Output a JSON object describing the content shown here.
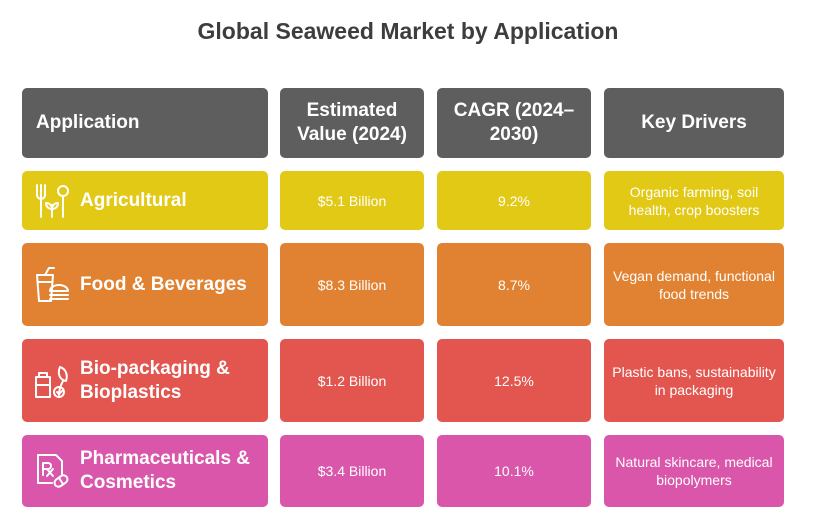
{
  "title": "Global Seaweed Market by Application",
  "headers": {
    "application": "Application",
    "value": "Estimated Value (2024)",
    "cagr": "CAGR (2024–2030)",
    "drivers": "Key Drivers"
  },
  "colors": {
    "header": "#5e5e5e",
    "agricultural": "#e2c916",
    "food": "#e08232",
    "bio": "#e2564f",
    "pharma": "#d956aa"
  },
  "rows": [
    {
      "application": "Agricultural",
      "value": "$5.1 Billion",
      "cagr": "9.2%",
      "drivers": "Organic farming, soil health, crop boosters",
      "icon": "utensils-plant-icon"
    },
    {
      "application": "Food & Beverages",
      "value": "$8.3 Billion",
      "cagr": "8.7%",
      "drivers": "Vegan demand, functional food trends",
      "icon": "drink-burger-icon"
    },
    {
      "application": "Bio-packaging & Bioplastics",
      "value": "$1.2 Billion",
      "cagr": "12.5%",
      "drivers": "Plastic bans, sustainability in packaging",
      "icon": "eco-packaging-icon"
    },
    {
      "application": "Pharmaceuticals & Cosmetics",
      "value": "$3.4 Billion",
      "cagr": "10.1%",
      "drivers": "Natural skincare, medical biopolymers",
      "icon": "prescription-pill-icon"
    }
  ]
}
